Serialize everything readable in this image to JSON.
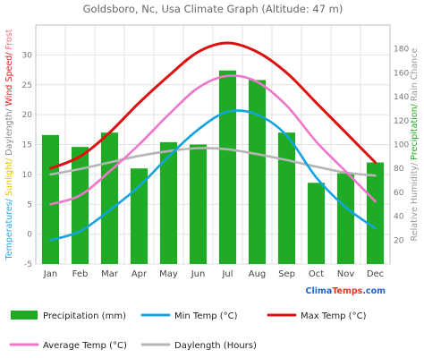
{
  "chart_data": {
    "type": "bar",
    "title": "Goldsboro, Nc, Usa Climate Graph (Altitude: 47 m)",
    "categories": [
      "Jan",
      "Feb",
      "Mar",
      "Apr",
      "May",
      "Jun",
      "Jul",
      "Aug",
      "Sep",
      "Oct",
      "Nov",
      "Dec"
    ],
    "left_axis": {
      "label_parts": [
        {
          "text": "Temperatures/ ",
          "color": "#2aa6e0"
        },
        {
          "text": "Sunlight/ ",
          "color": "#e8c000"
        },
        {
          "text": "Daylength/ ",
          "color": "#888888"
        },
        {
          "text": "Wind Speed/ ",
          "color": "#dd2222"
        },
        {
          "text": "Frost",
          "color": "#f07080"
        }
      ],
      "ylim": [
        -5,
        35
      ],
      "ticks": [
        -5,
        0,
        5,
        10,
        15,
        20,
        25,
        30
      ]
    },
    "right_axis": {
      "label_parts": [
        {
          "text": "Relative Humidity/ ",
          "color": "#999999"
        },
        {
          "text": "Precipitation/ ",
          "color": "#22aa22"
        },
        {
          "text": "Rain Chance",
          "color": "#999999"
        }
      ],
      "ylim": [
        0,
        200
      ],
      "ticks": [
        20,
        40,
        60,
        80,
        100,
        120,
        140,
        160,
        180
      ]
    },
    "series": [
      {
        "name": "Precipitation (mm)",
        "kind": "bar",
        "axis": "right",
        "color": "#1fab25",
        "values": [
          108,
          98,
          110,
          80,
          102,
          100,
          162,
          154,
          110,
          68,
          76,
          85
        ]
      },
      {
        "name": "Min Temp (°C)",
        "kind": "line",
        "axis": "left",
        "color": "#13a4e0",
        "values": [
          -1,
          0.5,
          4,
          8,
          13,
          17.5,
          20.5,
          20,
          16.5,
          9.5,
          4.5,
          1
        ]
      },
      {
        "name": "Max Temp (°C)",
        "kind": "line",
        "axis": "left",
        "color": "#dd1111",
        "values": [
          11,
          13,
          17,
          22,
          26.5,
          30.5,
          32,
          30.5,
          27,
          22,
          17,
          12
        ]
      },
      {
        "name": "Average Temp (°C)",
        "kind": "line",
        "axis": "left",
        "color": "#ee77cc",
        "values": [
          5,
          6.5,
          10.5,
          15,
          20,
          24.5,
          26.5,
          25.5,
          21.5,
          15.5,
          10.5,
          5.5
        ]
      },
      {
        "name": "Daylength (Hours)",
        "kind": "line",
        "axis": "left",
        "color": "#b5b5b5",
        "values": [
          10,
          10.9,
          12,
          13.1,
          13.9,
          14.4,
          14.2,
          13.4,
          12.4,
          11.3,
          10.3,
          9.8
        ]
      }
    ],
    "grid": true,
    "legend_position": "bottom"
  },
  "brand": {
    "text": "ClimaTemps.com",
    "part1": "Clima",
    "part2": "Temps",
    "suffix": ".com"
  }
}
